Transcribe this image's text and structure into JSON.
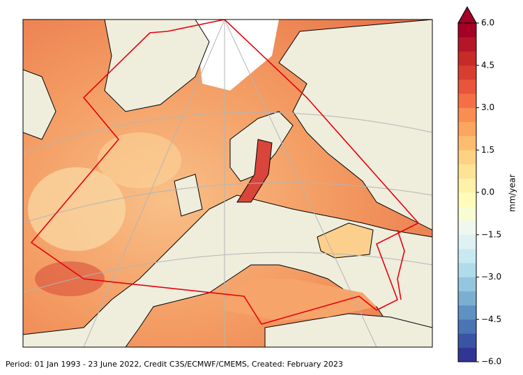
{
  "colorbar": {
    "label": "mm/year",
    "clim": [
      -6,
      6
    ],
    "extend": "max",
    "colors": [
      "#313695",
      "#3b53a4",
      "#4a74b4",
      "#5f91c3",
      "#7aafd2",
      "#95c6df",
      "#b0dbea",
      "#c9e9f2",
      "#def2f3",
      "#eef8ee",
      "#f9fcd3",
      "#fffbb9",
      "#fff1a7",
      "#fee395",
      "#fed283",
      "#fdbd70",
      "#fca55e",
      "#f98d52",
      "#f46f44",
      "#e8553a",
      "#d93d30",
      "#c72a27",
      "#b51627",
      "#a50026"
    ],
    "ticks": [
      {
        "value": -6,
        "label": "−6.0"
      },
      {
        "value": -4.5,
        "label": "−4.5"
      },
      {
        "value": -3,
        "label": "−3.0"
      },
      {
        "value": -1.5,
        "label": "−1.5"
      },
      {
        "value": 0,
        "label": "0.0"
      },
      {
        "value": 1.5,
        "label": "1.5"
      },
      {
        "value": 3,
        "label": "3.0"
      },
      {
        "value": 4.5,
        "label": "4.5"
      },
      {
        "value": 6,
        "label": "6.0"
      }
    ]
  },
  "footer": "Period: 01 Jan 1993 - 23 June 2022, Credit C3S/ECMWF/CMEMS, Created: February 2023"
}
